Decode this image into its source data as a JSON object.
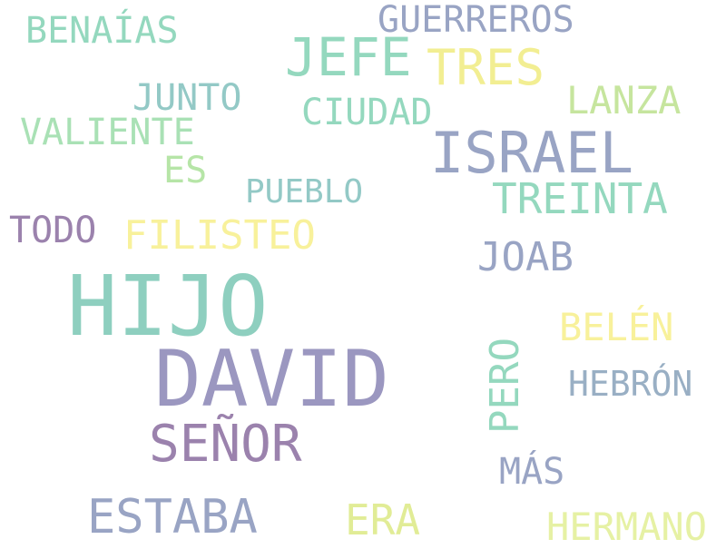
{
  "word_cloud": {
    "words": [
      {
        "text": "HIJO",
        "color": "#8ecfbf"
      },
      {
        "text": "DAVID",
        "color": "#9b97c0"
      },
      {
        "text": "ISRAEL",
        "color": "#99a4c4"
      },
      {
        "text": "JEFE",
        "color": "#94d8be"
      },
      {
        "text": "TRES",
        "color": "#f2ee92"
      },
      {
        "text": "GUERREROS",
        "color": "#99a4c4"
      },
      {
        "text": "BENAÍAS",
        "color": "#94d8be"
      },
      {
        "text": "JUNTO",
        "color": "#93c9c6"
      },
      {
        "text": "CIUDAD",
        "color": "#94d8be"
      },
      {
        "text": "LANZA",
        "color": "#c6e59e"
      },
      {
        "text": "VALIENTE",
        "color": "#a9e1b5"
      },
      {
        "text": "ES",
        "color": "#b6e5a7"
      },
      {
        "text": "PUEBLO",
        "color": "#93c9c6"
      },
      {
        "text": "TREINTA",
        "color": "#94d8be"
      },
      {
        "text": "TODO",
        "color": "#9b82ad"
      },
      {
        "text": "FILISTEO",
        "color": "#f8f19b"
      },
      {
        "text": "JOAB",
        "color": "#99a4c4"
      },
      {
        "text": "BELÉN",
        "color": "#f8f19b"
      },
      {
        "text": "PERO",
        "color": "#94d8be"
      },
      {
        "text": "HEBRÓN",
        "color": "#99afc4"
      },
      {
        "text": "SEÑOR",
        "color": "#9b82ad"
      },
      {
        "text": "MÁS",
        "color": "#99a4c4"
      },
      {
        "text": "ESTABA",
        "color": "#99a4c4"
      },
      {
        "text": "ERA",
        "color": "#e1ec96"
      },
      {
        "text": "HERMANO",
        "color": "#e6f1a4"
      }
    ]
  }
}
